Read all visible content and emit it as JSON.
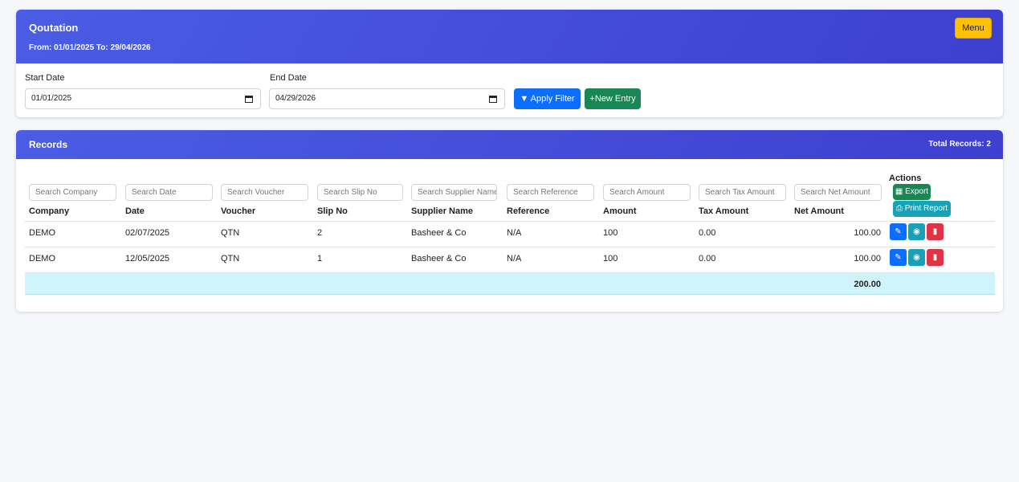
{
  "header": {
    "title": "Qoutation",
    "subtitle": "From: 01/01/2025 To: 29/04/2026",
    "menu": "Menu"
  },
  "filter": {
    "start_label": "Start Date",
    "start_value": "01/01/2025",
    "end_label": "End Date",
    "end_value": "04/29/2026",
    "apply": "Apply Filter",
    "new_entry": "+New Entry"
  },
  "records": {
    "title": "Records",
    "total": "Total Records: 2"
  },
  "table": {
    "search": [
      "Search Company",
      "Search Date",
      "Search Voucher",
      "Search Slip No",
      "Search Supplier Name",
      "Search Reference",
      "Search Amount",
      "Search Tax Amount",
      "Search Net Amount"
    ],
    "columns": [
      "Company",
      "Date",
      "Voucher",
      "Slip No",
      "Supplier Name",
      "Reference",
      "Amount",
      "Tax Amount",
      "Net Amount"
    ],
    "actions": "Actions",
    "export": "Export",
    "print": "Print Report",
    "rows": [
      [
        "DEMO",
        "02/07/2025",
        "QTN",
        "2",
        "Basheer & Co",
        "N/A",
        "100",
        "0.00",
        "100.00"
      ],
      [
        "DEMO",
        "12/05/2025",
        "QTN",
        "1",
        "Basheer & Co",
        "N/A",
        "100",
        "0.00",
        "100.00"
      ]
    ],
    "total": "200.00"
  }
}
